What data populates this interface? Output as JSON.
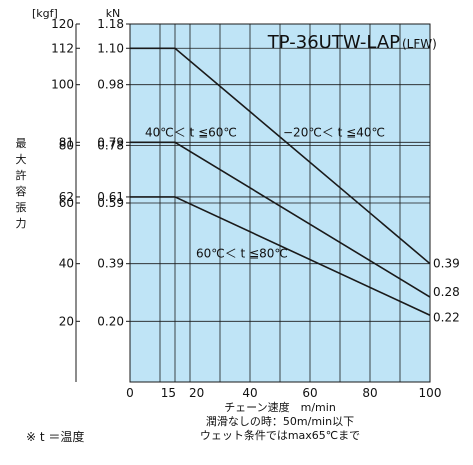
{
  "chart_data": {
    "type": "line",
    "title": "TP-36UTW-LAP",
    "title_suffix": "(LFW)",
    "units": {
      "left": "[kgf]",
      "right": "kN"
    },
    "ylabel": "最大許容張力",
    "xlabel_lines": [
      "チェーン速度　m/min",
      "潤滑なしの時：50m/min以下",
      "ウェット条件ではmax65℃まで"
    ],
    "footnote": "※ t ＝温度",
    "x_ticks": [
      "0",
      "15",
      "20",
      "40",
      "60",
      "80",
      "100"
    ],
    "xlim": [
      0,
      100
    ],
    "ylim_kN": [
      0,
      1.18
    ],
    "y_ticks": [
      {
        "kgf": "120",
        "kN": "1.18",
        "value": 1.18
      },
      {
        "kgf": "112",
        "kN": "1.10",
        "value": 1.1
      },
      {
        "kgf": "100",
        "kN": "0.98",
        "value": 0.98
      },
      {
        "kgf": "81",
        "kN": "0.79",
        "value": 0.79
      },
      {
        "kgf": "80",
        "kN": "0.78",
        "value": 0.78
      },
      {
        "kgf": "62",
        "kN": "0.61",
        "value": 0.61
      },
      {
        "kgf": "60",
        "kN": "0.59",
        "value": 0.59
      },
      {
        "kgf": "40",
        "kN": "0.39",
        "value": 0.39
      },
      {
        "kgf": "20",
        "kN": "0.20",
        "value": 0.2
      }
    ],
    "gridlines_x": [
      10,
      15,
      20,
      30,
      40,
      50,
      60,
      70,
      80,
      90,
      100
    ],
    "series": [
      {
        "label": "−20℃＜ t ≦40℃",
        "points": [
          [
            0,
            1.1
          ],
          [
            15,
            1.1
          ],
          [
            100,
            0.39
          ]
        ],
        "end_label": "0.39"
      },
      {
        "label": "40℃＜ t ≦60℃",
        "points": [
          [
            0,
            0.79
          ],
          [
            15,
            0.79
          ],
          [
            100,
            0.28
          ]
        ],
        "end_label": "0.28"
      },
      {
        "label": "60℃＜ t ≦80℃",
        "points": [
          [
            0,
            0.61
          ],
          [
            15,
            0.61
          ],
          [
            100,
            0.22
          ]
        ],
        "end_label": "0.22"
      }
    ],
    "grid": true,
    "background_color": "#bfe4f6",
    "line_color": "#1a1a1a"
  }
}
